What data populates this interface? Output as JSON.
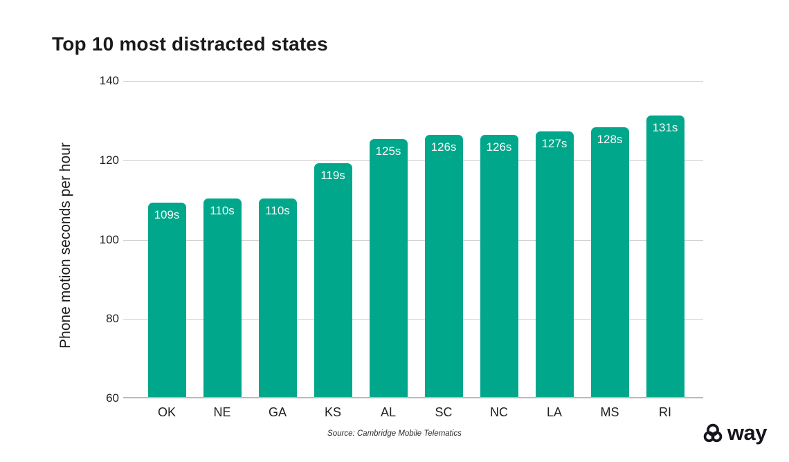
{
  "page": {
    "source": "Source: Cambridge Mobile Telematics",
    "brand": {
      "name": "way",
      "logo_icon": "way-rings-icon",
      "color": "#15151f"
    }
  },
  "chart_data": {
    "type": "bar",
    "title": "Top 10 most distracted states",
    "categories": [
      "OK",
      "NE",
      "GA",
      "KS",
      "AL",
      "SC",
      "NC",
      "LA",
      "MS",
      "RI"
    ],
    "values": [
      109,
      110,
      110,
      119,
      125,
      126,
      126,
      127,
      128,
      131
    ],
    "bar_labels": [
      "109s",
      "110s",
      "110s",
      "119s",
      "125s",
      "126s",
      "126s",
      "127s",
      "128s",
      "131s"
    ],
    "xlabel": "",
    "ylabel": "Phone motion seconds per hour",
    "ylim": [
      60,
      140
    ],
    "yticks": [
      140,
      120,
      100,
      80,
      60
    ],
    "grid": true,
    "legend": false,
    "bar_color": "#00a78b",
    "value_label_color": "#fafafa",
    "gridline_color": "#cccccc",
    "baseline_color": "#b9b9b9"
  }
}
